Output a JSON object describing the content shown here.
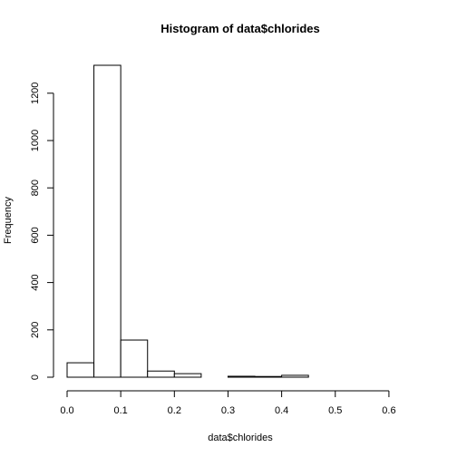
{
  "chart_data": {
    "type": "bar",
    "title": "Histogram of data$chlorides",
    "xlabel": "data$chlorides",
    "ylabel": "Frequency",
    "bins": [
      {
        "start": 0.0,
        "end": 0.05,
        "value": 61
      },
      {
        "start": 0.05,
        "end": 0.1,
        "value": 1318
      },
      {
        "start": 0.1,
        "end": 0.15,
        "value": 157
      },
      {
        "start": 0.15,
        "end": 0.2,
        "value": 26
      },
      {
        "start": 0.2,
        "end": 0.25,
        "value": 15
      },
      {
        "start": 0.25,
        "end": 0.3,
        "value": 0
      },
      {
        "start": 0.3,
        "end": 0.35,
        "value": 4
      },
      {
        "start": 0.35,
        "end": 0.4,
        "value": 3
      },
      {
        "start": 0.4,
        "end": 0.45,
        "value": 8
      },
      {
        "start": 0.45,
        "end": 0.5,
        "value": 0
      },
      {
        "start": 0.5,
        "end": 0.55,
        "value": 0
      },
      {
        "start": 0.55,
        "end": 0.6,
        "value": 0
      },
      {
        "start": 0.6,
        "end": 0.65,
        "value": 0
      }
    ],
    "x_ticks": [
      "0.0",
      "0.1",
      "0.2",
      "0.3",
      "0.4",
      "0.5",
      "0.6"
    ],
    "x_tick_values": [
      0,
      0.1,
      0.2,
      0.3,
      0.4,
      0.5,
      0.6
    ],
    "y_ticks": [
      "0",
      "200",
      "400",
      "600",
      "800",
      "1000",
      "1200"
    ],
    "y_tick_values": [
      0,
      200,
      400,
      600,
      800,
      1000,
      1200
    ],
    "xlim": [
      0,
      0.65
    ],
    "ylim": [
      0,
      1318
    ],
    "grid": false
  }
}
